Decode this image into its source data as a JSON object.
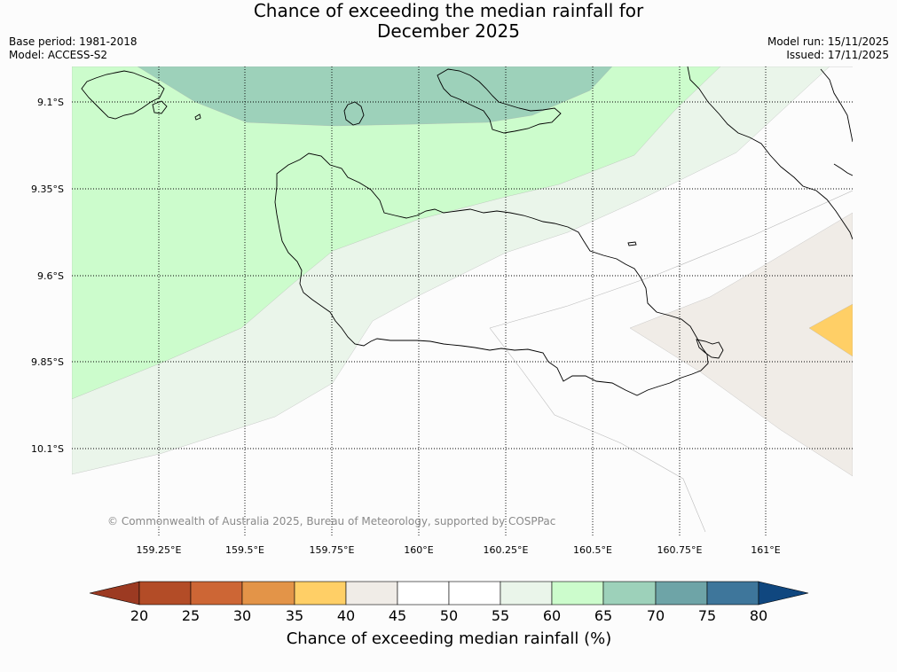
{
  "title": {
    "line1": "Chance of exceeding the median rainfall for",
    "line2": "December 2025"
  },
  "meta_left": {
    "base_period": "Base period: 1981-2018",
    "model": "Model: ACCESS-S2"
  },
  "meta_right": {
    "model_run": "Model run: 15/11/2025",
    "issued": "Issued: 17/11/2025"
  },
  "map": {
    "lat_labels": [
      "9.1°S",
      "9.35°S",
      "9.6°S",
      "9.85°S",
      "10.1°S"
    ],
    "lon_labels": [
      "159.25°E",
      "159.5°E",
      "159.75°E",
      "160°E",
      "160.25°E",
      "160.5°E",
      "160.75°E",
      "161°E"
    ],
    "copyright": "© Commonwealth of Australia 2025, Bureau of Meteorology, supported by COSPPac"
  },
  "legend": {
    "title": "Chance of exceeding median rainfall (%)",
    "ticks": [
      "20",
      "25",
      "30",
      "35",
      "40",
      "45",
      "50",
      "55",
      "60",
      "65",
      "70",
      "75",
      "80"
    ],
    "colors": [
      "#9c3a22",
      "#b34c27",
      "#cd6635",
      "#e39448",
      "#ffcf66",
      "#f0ece7",
      "#ffffff",
      "#ffffff",
      "#eaf5ea",
      "#ccfccc",
      "#9dd1ba",
      "#6ea4a7",
      "#3e769b",
      "#10477f"
    ]
  }
}
